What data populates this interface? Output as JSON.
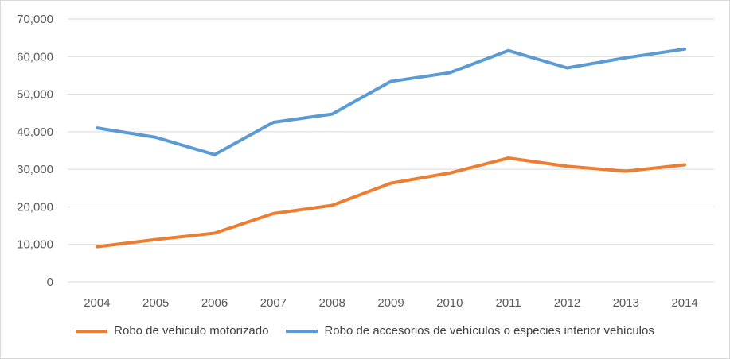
{
  "chart_data": {
    "type": "line",
    "title": "",
    "xlabel": "",
    "ylabel": "",
    "categories": [
      "2004",
      "2005",
      "2006",
      "2007",
      "2008",
      "2009",
      "2010",
      "2011",
      "2012",
      "2013",
      "2014"
    ],
    "ylim": [
      0,
      70000
    ],
    "yticks": [
      "0",
      "10,000",
      "20,000",
      "30,000",
      "40,000",
      "50,000",
      "60,000",
      "70,000"
    ],
    "grid": true,
    "legend_position": "bottom",
    "series": [
      {
        "name": "Robo de vehiculo motorizado",
        "color": "#ed7d31",
        "values": [
          9400,
          11300,
          13000,
          18200,
          20400,
          26300,
          29000,
          33000,
          30800,
          29500,
          31200
        ]
      },
      {
        "name": "Robo de accesorios de vehículos o especies interior vehículos",
        "color": "#5b9bd5",
        "values": [
          41000,
          38500,
          33900,
          42500,
          44700,
          53400,
          55700,
          61600,
          57000,
          59700,
          62000
        ]
      }
    ]
  }
}
